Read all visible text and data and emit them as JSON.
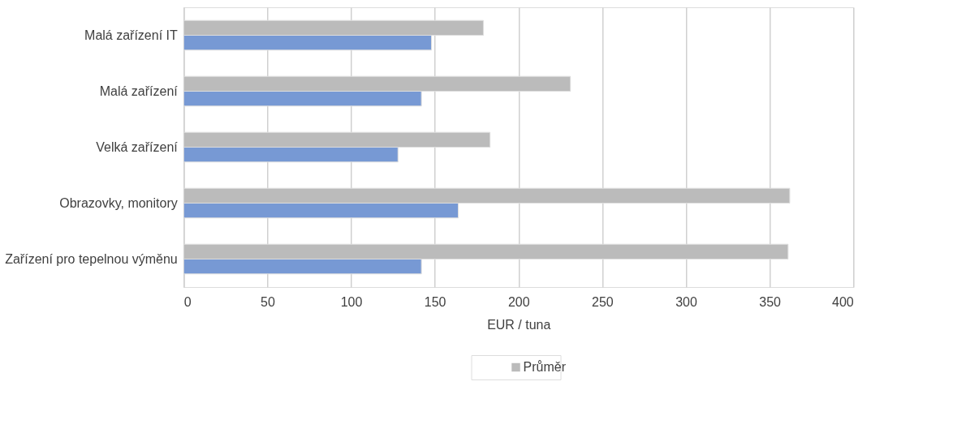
{
  "chart_data": {
    "type": "bar",
    "orientation": "horizontal",
    "xlabel": "EUR / tuna",
    "categories": [
      "Malá zařízení IT",
      "Malá zařízení",
      "Velká zařízení",
      "Obrazovky, monitory",
      "Zařízení pro tepelnou výměnu"
    ],
    "series": [
      {
        "name": "Průměr",
        "color": "#bbbbbb",
        "values": [
          179,
          231,
          183,
          362,
          361
        ]
      },
      {
        "color": "#7799d4",
        "values": [
          148,
          142,
          128,
          164,
          142
        ]
      }
    ],
    "xlim": [
      0,
      400
    ],
    "xticks": [
      0,
      50,
      100,
      150,
      200,
      250,
      300,
      350,
      400
    ],
    "grid": "x",
    "legend": "bottom"
  }
}
